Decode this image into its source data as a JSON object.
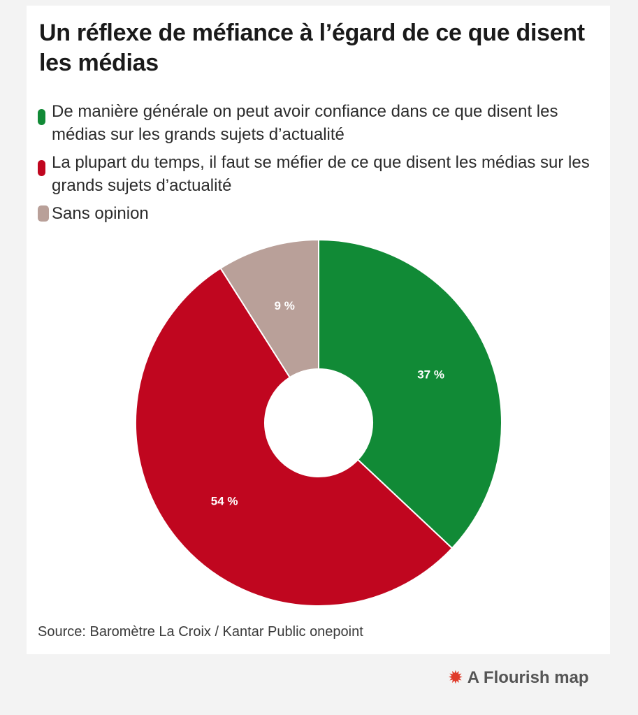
{
  "title": "Un réflexe de méfiance à l’égard de ce que disent les médias",
  "source": "Source: Baromètre La Croix / Kantar Public onepoint",
  "branding": {
    "label": "A Flourish map",
    "icon": "flourish-star-icon",
    "color": "#e03b2b"
  },
  "chart_data": {
    "type": "pie",
    "donut": true,
    "title": "Un réflexe de méfiance à l’égard de ce que disent les médias",
    "legend_position": "top-left",
    "slices": [
      {
        "label": "De manière générale on peut avoir confiance dans ce que disent les médias sur les grands sujets d’actualité",
        "value": 37,
        "display": "37 %",
        "color": "#118a36"
      },
      {
        "label": "La plupart du temps, il faut se méfier de ce que disent les médias sur les grands sujets d’actualité",
        "value": 54,
        "display": "54 %",
        "color": "#c0061f"
      },
      {
        "label": "Sans opinion",
        "value": 9,
        "display": "9 %",
        "color": "#b9a099"
      }
    ]
  }
}
